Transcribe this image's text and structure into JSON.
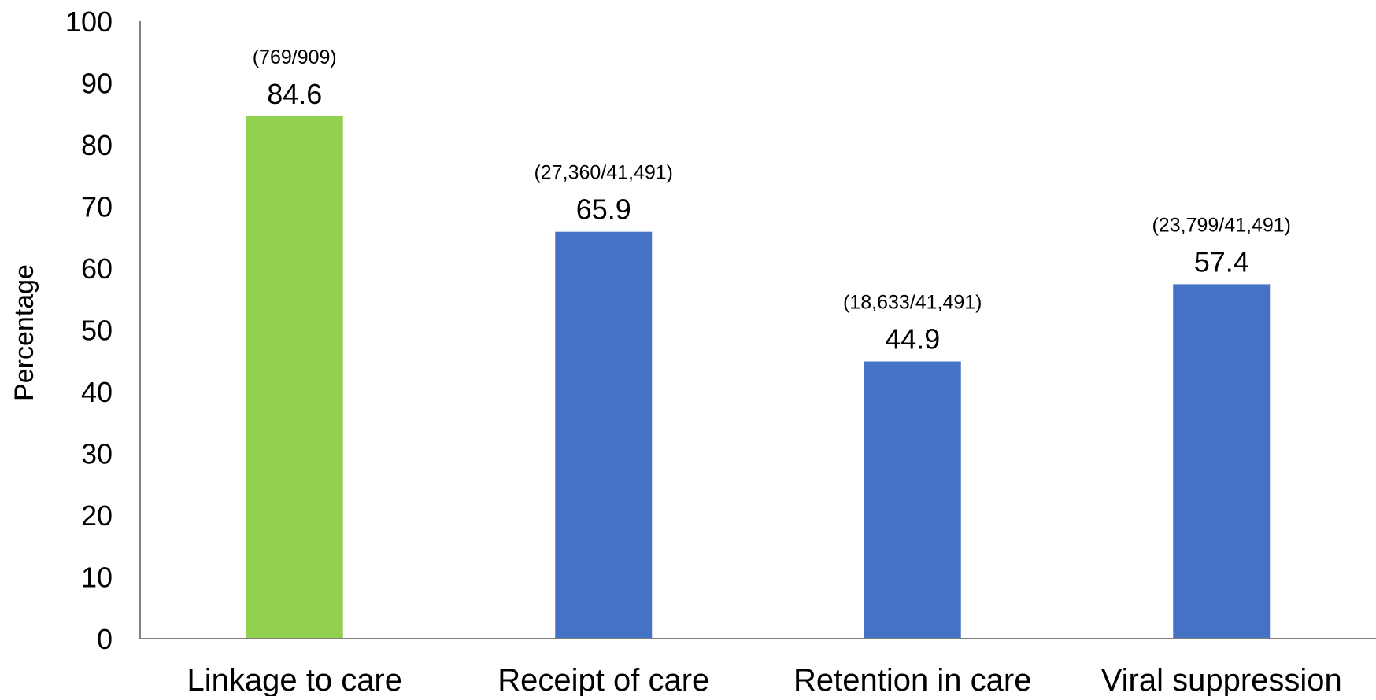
{
  "chart_data": {
    "type": "bar",
    "categories": [
      "Linkage to care",
      "Receipt of care",
      "Retention in care",
      "Viral suppression"
    ],
    "values": [
      84.6,
      65.9,
      44.9,
      57.4
    ],
    "value_labels": [
      "84.6",
      "65.9",
      "44.9",
      "57.4"
    ],
    "count_labels": [
      "(769/909)",
      "(27,360/41,491)",
      "(18,633/41,491)",
      "(23,799/41,491)"
    ],
    "bar_colors": [
      "#92D050",
      "#4472C4",
      "#4472C4",
      "#4472C4"
    ],
    "title": "",
    "xlabel": "",
    "ylabel": "Percentage",
    "ylim": [
      0,
      100
    ],
    "yticks": [
      "0",
      "10",
      "20",
      "30",
      "40",
      "50",
      "60",
      "70",
      "80",
      "90",
      "100"
    ],
    "grid": false,
    "legend": "none"
  }
}
